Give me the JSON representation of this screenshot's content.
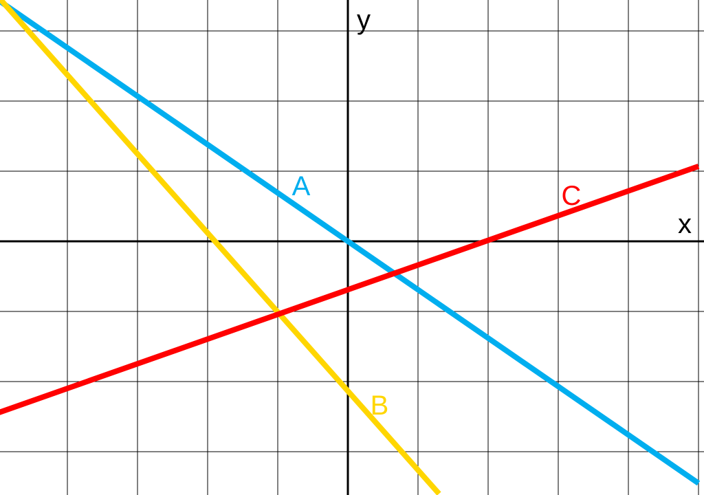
{
  "chart_data": {
    "type": "line",
    "xlabel": "x",
    "ylabel": "y",
    "xlim": [
      -5,
      5
    ],
    "ylim": [
      -3.6,
      3.5
    ],
    "grid": true,
    "series": [
      {
        "name": "A",
        "color": "#00aeef",
        "x": [
          -5,
          5
        ],
        "y": [
          3.45,
          -3.45
        ]
      },
      {
        "name": "B",
        "color": "#ffd600",
        "x": [
          -5,
          1.3
        ],
        "y": [
          3.5,
          -3.6
        ]
      },
      {
        "name": "C",
        "color": "#ff0000",
        "x": [
          -5,
          5
        ],
        "y": [
          -2.45,
          1.07
        ]
      }
    ]
  }
}
